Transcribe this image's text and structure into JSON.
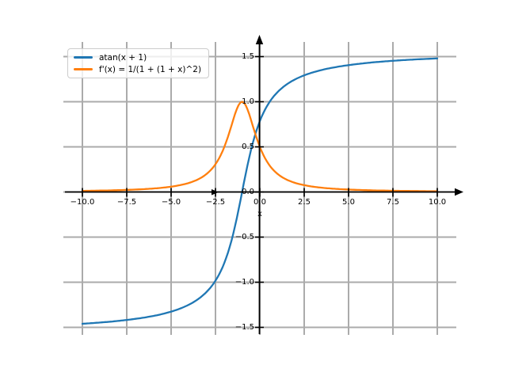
{
  "chart_data": {
    "type": "line",
    "title": "",
    "xlabel": "x",
    "ylabel": "",
    "xlim": [
      -11.1,
      11.1
    ],
    "ylim": [
      -1.62,
      1.66
    ],
    "grid": true,
    "grid_color": "#ababab",
    "axis_color": "#000000",
    "legend_position": "upper left",
    "x_ticks": [
      {
        "value": -10,
        "label": "−10.0"
      },
      {
        "value": -7.5,
        "label": "−7.5"
      },
      {
        "value": -5,
        "label": "−5.0"
      },
      {
        "value": -2.5,
        "label": "−2.5"
      },
      {
        "value": 0,
        "label": "0.0"
      },
      {
        "value": 2.5,
        "label": "2.5"
      },
      {
        "value": 5,
        "label": "5.0"
      },
      {
        "value": 7.5,
        "label": "7.5"
      },
      {
        "value": 10,
        "label": "10.0"
      }
    ],
    "y_ticks": [
      {
        "value": 1.5,
        "label": "1.5"
      },
      {
        "value": 1.0,
        "label": "1.0"
      },
      {
        "value": 0.5,
        "label": "0.5"
      },
      {
        "value": 0.0,
        "label": "0.0"
      },
      {
        "value": -0.5,
        "label": "−0.5"
      },
      {
        "value": -1.0,
        "label": "−1.0"
      },
      {
        "value": -1.5,
        "label": "−1.5"
      }
    ],
    "series": [
      {
        "name": "atan(x + 1)",
        "color": "#1f77b4",
        "expr": "Math.atan(x+1)",
        "x_range": [
          -10,
          10
        ],
        "sample_step": 0.1,
        "endpoint_values": {
          "x_min_y": -1.4601,
          "x_max_y": 1.4801
        }
      },
      {
        "name": "f'(x) = 1/(1 + (1 + x)^2)",
        "color": "#ff7f0e",
        "expr": "1/(1+(1+x)*(1+x))",
        "x_range": [
          -10,
          10
        ],
        "sample_step": 0.1,
        "peak": {
          "x": -1,
          "y": 1.0
        }
      }
    ]
  }
}
